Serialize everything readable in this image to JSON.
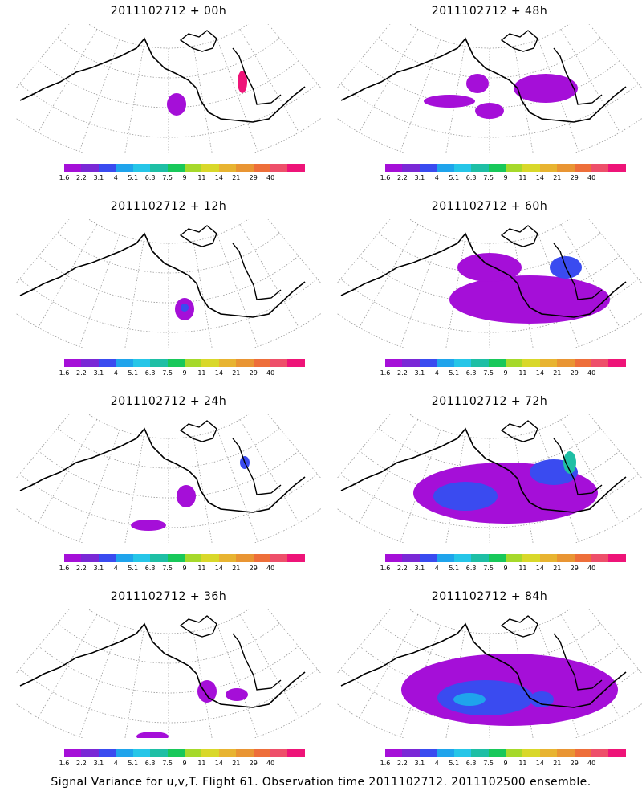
{
  "colorbar": {
    "colors": [
      "#a50fd8",
      "#7a28d6",
      "#3a4bf0",
      "#1fa4ec",
      "#26c6e8",
      "#1ebfa5",
      "#18c85a",
      "#a6d92b",
      "#d9d82a",
      "#e8b431",
      "#e99533",
      "#ee6e3a",
      "#ee4f6a",
      "#ee1478"
    ],
    "labels": [
      "1.6",
      "2.2",
      "3.1",
      "4",
      "5.1",
      "6.3",
      "7.5",
      "9",
      "11",
      "14",
      "21",
      "29",
      "40"
    ]
  },
  "panels": [
    {
      "title": "2011102712 + 00h"
    },
    {
      "title": "2011102712 + 48h"
    },
    {
      "title": "2011102712 + 12h"
    },
    {
      "title": "2011102712 + 60h"
    },
    {
      "title": "2011102712 + 24h"
    },
    {
      "title": "2011102712 + 72h"
    },
    {
      "title": "2011102712 + 36h"
    },
    {
      "title": "2011102712 + 84h"
    }
  ],
  "footer": {
    "caption": "Signal Variance for u,v,T. Flight 61. Observation time 2011102712. 2011102500 ensemble."
  }
}
